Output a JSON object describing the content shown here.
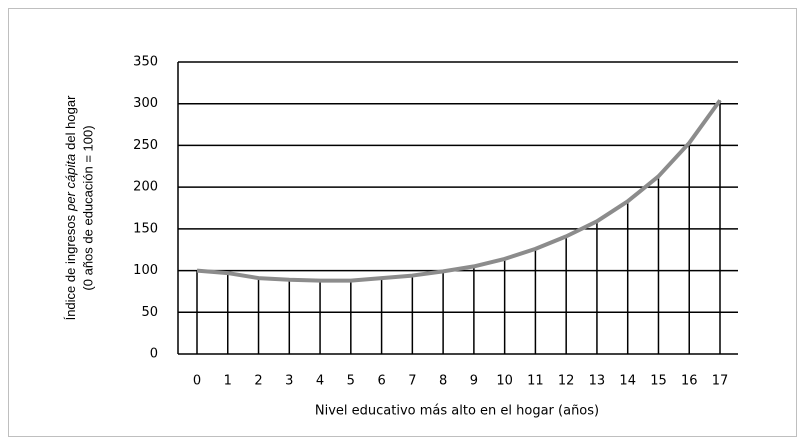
{
  "chart_data": {
    "type": "line",
    "y_label_lines": [
      [
        "Índice de ingresos",
        "per cápita",
        "del hogar"
      ],
      "(0 años de educación = 100)"
    ],
    "x_label": "Nivel educativo más alto en el hogar (años)",
    "categories": [
      "0",
      "1",
      "2",
      "3",
      "4",
      "5",
      "6",
      "7",
      "8",
      "9",
      "10",
      "11",
      "12",
      "13",
      "14",
      "15",
      "16",
      "17"
    ],
    "values": [
      100,
      97,
      91,
      89,
      88,
      88,
      91,
      94,
      99,
      105,
      114,
      126,
      141,
      159,
      183,
      213,
      253,
      304
    ],
    "color": "#8c8c8c",
    "drop_lines": true,
    "ylim": [
      0,
      350
    ],
    "yticks": [
      0,
      50,
      100,
      150,
      200,
      250,
      300,
      350
    ],
    "grid": true
  }
}
